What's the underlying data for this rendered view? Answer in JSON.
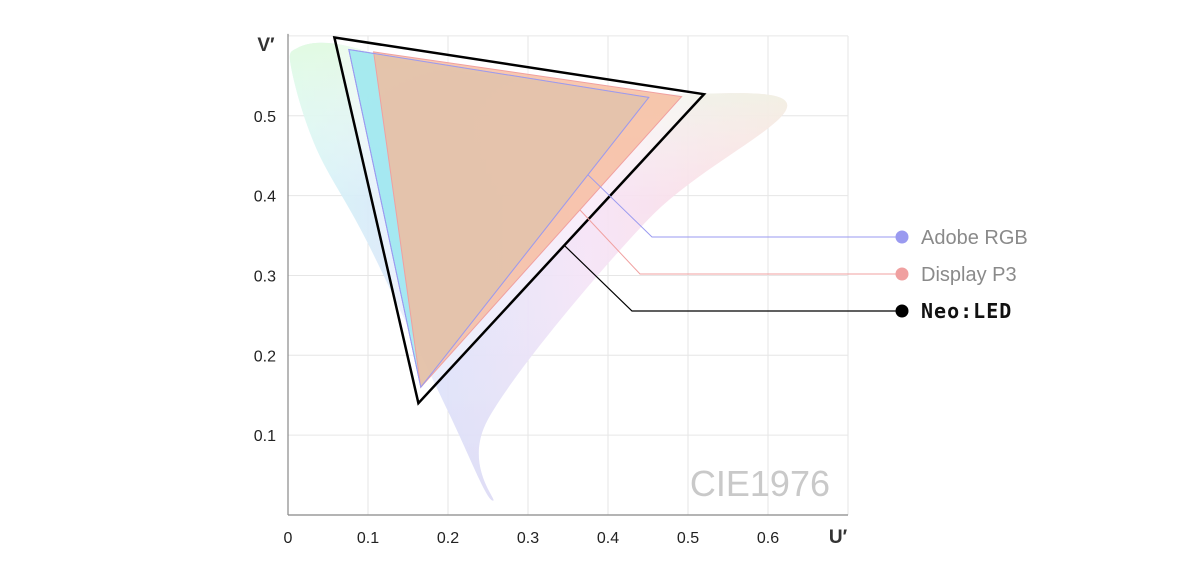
{
  "chart_data": {
    "type": "scatter",
    "title": "",
    "xlabel": "U′",
    "ylabel": "V′",
    "watermark": "CIE1976",
    "xlim": [
      0,
      0.7
    ],
    "ylim": [
      0,
      0.6
    ],
    "x_ticks": [
      "0",
      "0.1",
      "0.2",
      "0.3",
      "0.4",
      "0.5",
      "0.6"
    ],
    "y_ticks": [
      "0.1",
      "0.2",
      "0.3",
      "0.4",
      "0.5"
    ],
    "grid": true,
    "spectral_locus": [
      [
        0.256,
        0.018
      ],
      [
        0.2,
        0.13
      ],
      [
        0.1,
        0.34
      ],
      [
        0.035,
        0.46
      ],
      [
        0.004,
        0.56
      ],
      [
        0.012,
        0.585
      ],
      [
        0.06,
        0.59
      ],
      [
        0.16,
        0.565
      ],
      [
        0.3,
        0.545
      ],
      [
        0.45,
        0.528
      ],
      [
        0.624,
        0.513
      ],
      [
        0.45,
        0.37
      ],
      [
        0.25,
        0.12
      ]
    ],
    "series": [
      {
        "name": "Adobe RGB",
        "color": "#9a9af0",
        "points": [
          [
            0.076,
            0.583
          ],
          [
            0.451,
            0.523
          ],
          [
            0.166,
            0.16
          ]
        ]
      },
      {
        "name": "Display P3",
        "color": "#f0a0a0",
        "points": [
          [
            0.107,
            0.58
          ],
          [
            0.492,
            0.524
          ],
          [
            0.166,
            0.16
          ]
        ]
      },
      {
        "name": "Neo:LED",
        "color": "#000000",
        "points": [
          [
            0.058,
            0.598
          ],
          [
            0.52,
            0.527
          ],
          [
            0.163,
            0.14
          ]
        ]
      }
    ],
    "legend": "right"
  }
}
